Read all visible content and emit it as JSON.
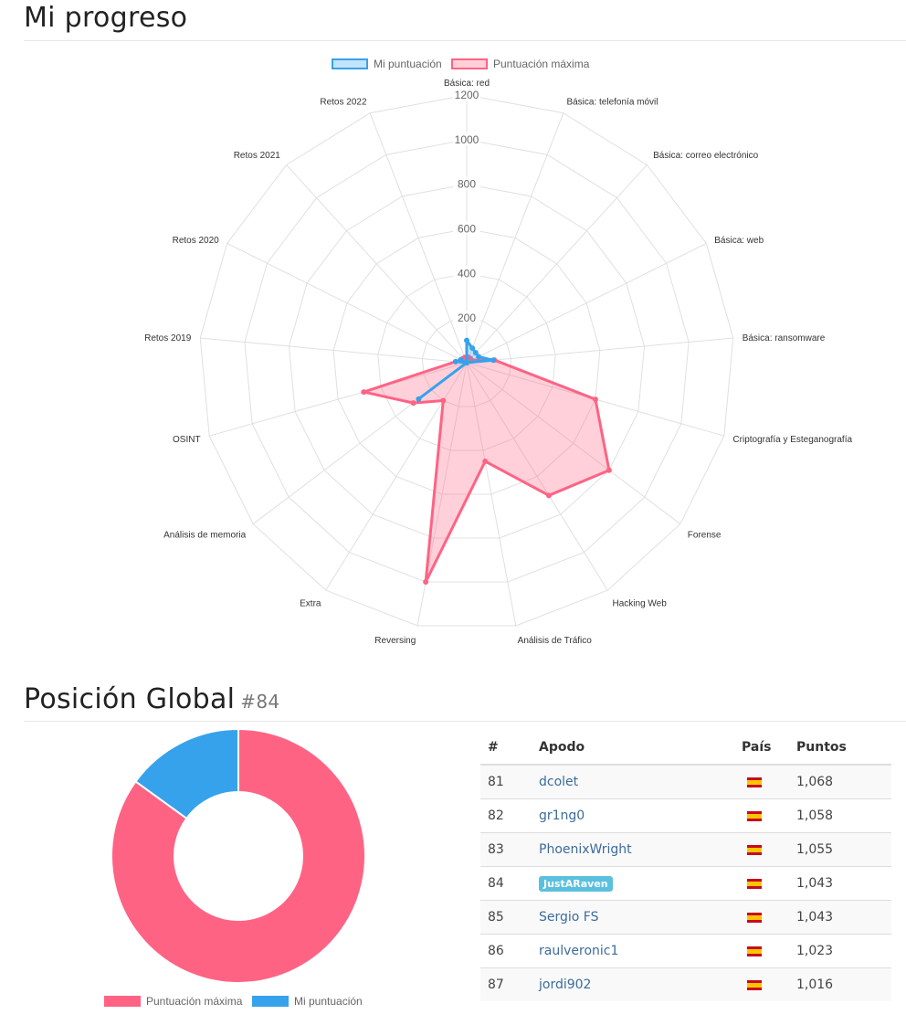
{
  "progress": {
    "title": "Mi progreso"
  },
  "global": {
    "title": "Posición Global",
    "rank": "#84"
  },
  "colors": {
    "mine": "#36a2eb",
    "max": "#ff6384"
  },
  "chart_data": [
    {
      "type": "radar",
      "legend": [
        "Mi puntuación",
        "Puntuación máxima"
      ],
      "legend_position": "top",
      "categories": [
        "Básica: red",
        "Básica: telefonía móvil",
        "Básica: correo electrónico",
        "Básica: web",
        "Básica: ransomware",
        "Criptografía y Esteganografía",
        "Forense",
        "Hacking Web",
        "Análisis de Tráfico",
        "Reversing",
        "Extra",
        "Análisis de memoria",
        "OSINT",
        "Retos 2019",
        "Retos 2020",
        "Retos 2021",
        "Retos 2022"
      ],
      "ticks": [
        "200",
        "400",
        "600",
        "800",
        "1000",
        "1200"
      ],
      "rmax": 1200,
      "series": [
        {
          "name": "Mi puntuación",
          "values": [
            100,
            70,
            60,
            60,
            120,
            0,
            0,
            0,
            0,
            0,
            0,
            270,
            0,
            50,
            30,
            0,
            0
          ]
        },
        {
          "name": "Puntuación máxima",
          "values": [
            25,
            25,
            25,
            25,
            125,
            600,
            800,
            700,
            450,
            1000,
            200,
            300,
            480,
            50,
            25,
            25,
            25
          ]
        }
      ]
    },
    {
      "type": "doughnut",
      "legend": [
        "Puntuación máxima",
        "Mi puntuación"
      ],
      "legend_position": "bottom",
      "values": [
        5905,
        1043
      ]
    }
  ],
  "ranking": {
    "headers": [
      "#",
      "Apodo",
      "País",
      "Puntos"
    ],
    "rows": [
      {
        "pos": "81",
        "nick": "dcolet",
        "points": "1,068"
      },
      {
        "pos": "82",
        "nick": "gr1ng0",
        "points": "1,058"
      },
      {
        "pos": "83",
        "nick": "PhoenixWright",
        "points": "1,055"
      },
      {
        "pos": "84",
        "nick": "JustARaven",
        "points": "1,043",
        "current": true
      },
      {
        "pos": "85",
        "nick": "Sergio FS",
        "points": "1,043"
      },
      {
        "pos": "86",
        "nick": "raulveronic1",
        "points": "1,023"
      },
      {
        "pos": "87",
        "nick": "jordi902",
        "points": "1,016"
      }
    ]
  }
}
